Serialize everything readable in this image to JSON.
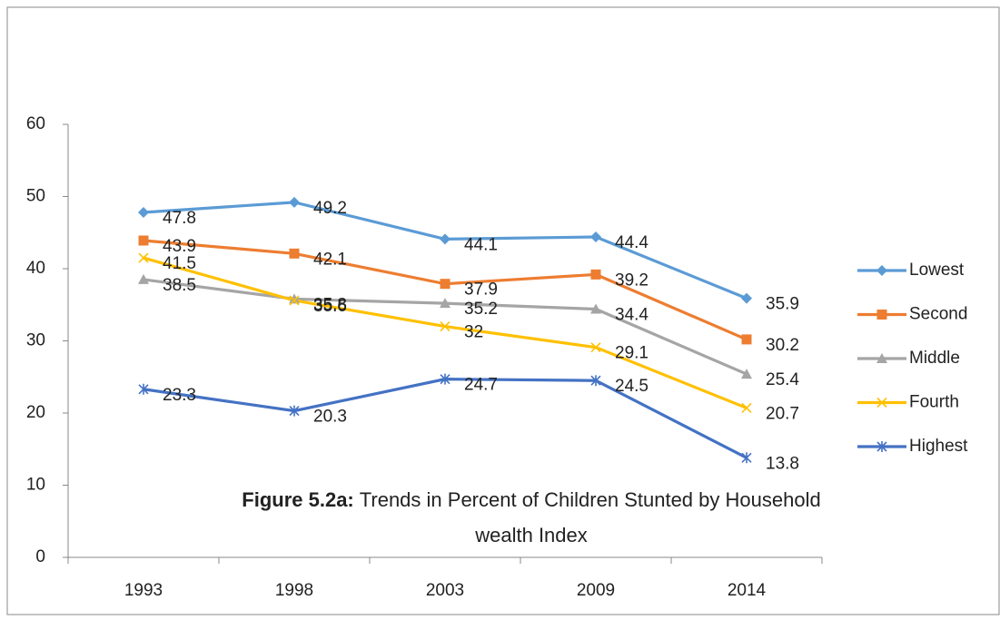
{
  "chart_data": {
    "type": "line",
    "caption_label": "Figure 5.2a:",
    "caption_lines": [
      "Trends in Percent of Children Stunted  by Household",
      "wealth Index"
    ],
    "categories": [
      "1993",
      "1998",
      "2003",
      "2009",
      "2014"
    ],
    "series": [
      {
        "name": "Lowest",
        "color": "#5b9bd5",
        "marker": "diamond",
        "values": [
          47.8,
          49.2,
          44.1,
          44.4,
          35.9
        ]
      },
      {
        "name": "Second",
        "color": "#ed7d31",
        "marker": "square",
        "values": [
          43.9,
          42.1,
          37.9,
          39.2,
          30.2
        ]
      },
      {
        "name": "Middle",
        "color": "#a5a5a5",
        "marker": "triangle",
        "values": [
          38.5,
          35.8,
          35.2,
          34.4,
          25.4
        ]
      },
      {
        "name": "Fourth",
        "color": "#ffc000",
        "marker": "x",
        "values": [
          41.5,
          35.6,
          32,
          29.1,
          20.7
        ]
      },
      {
        "name": "Highest",
        "color": "#4472c4",
        "marker": "star",
        "values": [
          23.3,
          20.3,
          24.7,
          24.5,
          13.8
        ]
      }
    ],
    "ylim": [
      0,
      60
    ],
    "yticks": [
      0,
      10,
      20,
      30,
      40,
      50,
      60
    ],
    "grid": false,
    "legend": "right"
  }
}
